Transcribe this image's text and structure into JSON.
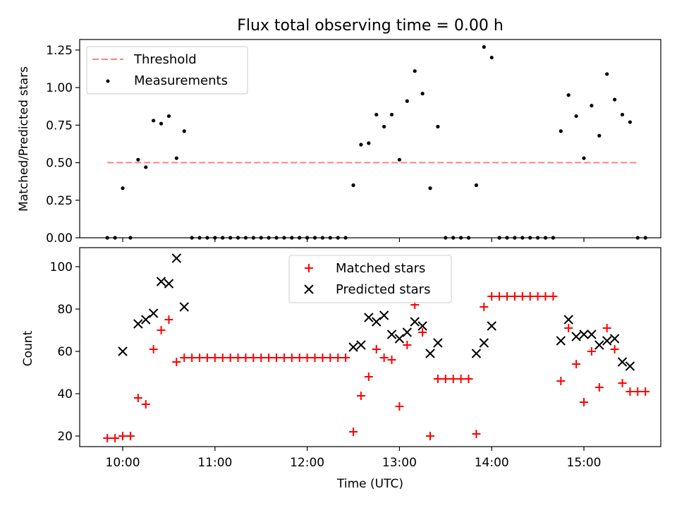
{
  "figure": {
    "title": "Flux total observing time = 0.00 h"
  },
  "chart_data": [
    {
      "type": "scatter",
      "title": "Flux total observing time = 0.00 h",
      "xlabel": "",
      "ylabel": "Matched/Predicted stars",
      "xlim": [
        "09:32",
        "15:50"
      ],
      "ylim": [
        0,
        1.32
      ],
      "yticks": [
        0.0,
        0.25,
        0.5,
        0.75,
        1.0,
        1.25
      ],
      "ytick_labels": [
        "0.00",
        "0.25",
        "0.50",
        "0.75",
        "1.00",
        "1.25"
      ],
      "xticks": [
        "10:00",
        "11:00",
        "12:00",
        "13:00",
        "14:00",
        "15:00"
      ],
      "xtick_labels_shown": false,
      "legend": {
        "placement": "top-left",
        "entries": [
          "Threshold",
          "Measurements"
        ]
      },
      "series": [
        {
          "name": "Threshold",
          "style": "dashed-line",
          "color": "#ff7f7f",
          "x": [
            "09:50",
            "15:35"
          ],
          "y": [
            0.5,
            0.5
          ]
        },
        {
          "name": "Measurements",
          "style": "dot",
          "color": "#000000",
          "points": [
            [
              "09:50",
              0
            ],
            [
              "09:55",
              0
            ],
            [
              "10:00",
              0.33
            ],
            [
              "10:05",
              0
            ],
            [
              "10:10",
              0.52
            ],
            [
              "10:15",
              0.47
            ],
            [
              "10:20",
              0.78
            ],
            [
              "10:25",
              0.76
            ],
            [
              "10:30",
              0.81
            ],
            [
              "10:35",
              0.53
            ],
            [
              "10:40",
              0.71
            ],
            [
              "10:45",
              0
            ],
            [
              "10:50",
              0
            ],
            [
              "10:55",
              0
            ],
            [
              "11:00",
              0
            ],
            [
              "11:05",
              0
            ],
            [
              "11:10",
              0
            ],
            [
              "11:15",
              0
            ],
            [
              "11:20",
              0
            ],
            [
              "11:25",
              0
            ],
            [
              "11:30",
              0
            ],
            [
              "11:35",
              0
            ],
            [
              "11:40",
              0
            ],
            [
              "11:45",
              0
            ],
            [
              "11:50",
              0
            ],
            [
              "11:55",
              0
            ],
            [
              "12:00",
              0
            ],
            [
              "12:05",
              0
            ],
            [
              "12:10",
              0
            ],
            [
              "12:15",
              0
            ],
            [
              "12:20",
              0
            ],
            [
              "12:25",
              0
            ],
            [
              "12:30",
              0.35
            ],
            [
              "12:35",
              0.62
            ],
            [
              "12:40",
              0.63
            ],
            [
              "12:45",
              0.82
            ],
            [
              "12:50",
              0.74
            ],
            [
              "12:55",
              0.82
            ],
            [
              "13:00",
              0.52
            ],
            [
              "13:05",
              0.91
            ],
            [
              "13:10",
              1.11
            ],
            [
              "13:15",
              0.96
            ],
            [
              "13:20",
              0.33
            ],
            [
              "13:25",
              0.74
            ],
            [
              "13:30",
              0
            ],
            [
              "13:35",
              0
            ],
            [
              "13:40",
              0
            ],
            [
              "13:45",
              0
            ],
            [
              "13:50",
              0.35
            ],
            [
              "13:55",
              1.27
            ],
            [
              "14:00",
              1.2
            ],
            [
              "14:05",
              0
            ],
            [
              "14:10",
              0
            ],
            [
              "14:15",
              0
            ],
            [
              "14:20",
              0
            ],
            [
              "14:25",
              0
            ],
            [
              "14:30",
              0
            ],
            [
              "14:35",
              0
            ],
            [
              "14:40",
              0
            ],
            [
              "14:45",
              0.71
            ],
            [
              "14:50",
              0.95
            ],
            [
              "14:55",
              0.81
            ],
            [
              "15:00",
              0.53
            ],
            [
              "15:05",
              0.88
            ],
            [
              "15:10",
              0.68
            ],
            [
              "15:15",
              1.09
            ],
            [
              "15:20",
              0.92
            ],
            [
              "15:25",
              0.82
            ],
            [
              "15:30",
              0.77
            ],
            [
              "15:35",
              0
            ],
            [
              "15:40",
              0
            ]
          ]
        }
      ]
    },
    {
      "type": "scatter",
      "title": "",
      "xlabel": "Time (UTC)",
      "ylabel": "Count",
      "xlim": [
        "09:32",
        "15:50"
      ],
      "ylim": [
        15,
        109
      ],
      "yticks": [
        20,
        40,
        60,
        80,
        100
      ],
      "ytick_labels": [
        "20",
        "40",
        "60",
        "80",
        "100"
      ],
      "xticks": [
        "10:00",
        "11:00",
        "12:00",
        "13:00",
        "14:00",
        "15:00"
      ],
      "xtick_labels": [
        "10:00",
        "11:00",
        "12:00",
        "13:00",
        "14:00",
        "15:00"
      ],
      "legend": {
        "placement": "top-center",
        "entries": [
          "Matched stars",
          "Predicted stars"
        ]
      },
      "series": [
        {
          "name": "Matched stars",
          "marker": "plus",
          "color": "#ff0000",
          "points": [
            [
              "09:50",
              19
            ],
            [
              "09:55",
              19
            ],
            [
              "10:00",
              20
            ],
            [
              "10:05",
              20
            ],
            [
              "10:10",
              38
            ],
            [
              "10:15",
              35
            ],
            [
              "10:20",
              61
            ],
            [
              "10:25",
              70
            ],
            [
              "10:30",
              75
            ],
            [
              "10:35",
              55
            ],
            [
              "10:40",
              57
            ],
            [
              "10:45",
              57
            ],
            [
              "10:50",
              57
            ],
            [
              "10:55",
              57
            ],
            [
              "11:00",
              57
            ],
            [
              "11:05",
              57
            ],
            [
              "11:10",
              57
            ],
            [
              "11:15",
              57
            ],
            [
              "11:20",
              57
            ],
            [
              "11:25",
              57
            ],
            [
              "11:30",
              57
            ],
            [
              "11:35",
              57
            ],
            [
              "11:40",
              57
            ],
            [
              "11:45",
              57
            ],
            [
              "11:50",
              57
            ],
            [
              "11:55",
              57
            ],
            [
              "12:00",
              57
            ],
            [
              "12:05",
              57
            ],
            [
              "12:10",
              57
            ],
            [
              "12:15",
              57
            ],
            [
              "12:20",
              57
            ],
            [
              "12:25",
              57
            ],
            [
              "12:30",
              22
            ],
            [
              "12:35",
              39
            ],
            [
              "12:40",
              48
            ],
            [
              "12:45",
              61
            ],
            [
              "12:50",
              57
            ],
            [
              "12:55",
              56
            ],
            [
              "13:00",
              34
            ],
            [
              "13:05",
              63
            ],
            [
              "13:10",
              82
            ],
            [
              "13:15",
              69
            ],
            [
              "13:20",
              20
            ],
            [
              "13:25",
              47
            ],
            [
              "13:30",
              47
            ],
            [
              "13:35",
              47
            ],
            [
              "13:40",
              47
            ],
            [
              "13:45",
              47
            ],
            [
              "13:50",
              21
            ],
            [
              "13:55",
              81
            ],
            [
              "14:00",
              86
            ],
            [
              "14:05",
              86
            ],
            [
              "14:10",
              86
            ],
            [
              "14:15",
              86
            ],
            [
              "14:20",
              86
            ],
            [
              "14:25",
              86
            ],
            [
              "14:30",
              86
            ],
            [
              "14:35",
              86
            ],
            [
              "14:40",
              86
            ],
            [
              "14:45",
              46
            ],
            [
              "14:50",
              71
            ],
            [
              "14:55",
              54
            ],
            [
              "15:00",
              36
            ],
            [
              "15:05",
              60
            ],
            [
              "15:10",
              43
            ],
            [
              "15:15",
              71
            ],
            [
              "15:20",
              61
            ],
            [
              "15:25",
              45
            ],
            [
              "15:30",
              41
            ],
            [
              "15:35",
              41
            ],
            [
              "15:40",
              41
            ]
          ]
        },
        {
          "name": "Predicted stars",
          "marker": "x",
          "color": "#000000",
          "points": [
            [
              "10:00",
              60
            ],
            [
              "10:10",
              73
            ],
            [
              "10:15",
              75
            ],
            [
              "10:20",
              78
            ],
            [
              "10:25",
              93
            ],
            [
              "10:30",
              92
            ],
            [
              "10:35",
              104
            ],
            [
              "10:40",
              81
            ],
            [
              "12:30",
              62
            ],
            [
              "12:35",
              63
            ],
            [
              "12:40",
              76
            ],
            [
              "12:45",
              74
            ],
            [
              "12:50",
              77
            ],
            [
              "12:55",
              68
            ],
            [
              "13:00",
              66
            ],
            [
              "13:05",
              69
            ],
            [
              "13:10",
              74
            ],
            [
              "13:15",
              72
            ],
            [
              "13:20",
              59
            ],
            [
              "13:25",
              64
            ],
            [
              "13:50",
              59
            ],
            [
              "13:55",
              64
            ],
            [
              "14:00",
              72
            ],
            [
              "14:45",
              65
            ],
            [
              "14:50",
              75
            ],
            [
              "14:55",
              67
            ],
            [
              "15:00",
              68
            ],
            [
              "15:05",
              68
            ],
            [
              "15:10",
              63
            ],
            [
              "15:15",
              65
            ],
            [
              "15:20",
              66
            ],
            [
              "15:25",
              55
            ],
            [
              "15:30",
              53
            ]
          ]
        }
      ]
    }
  ]
}
